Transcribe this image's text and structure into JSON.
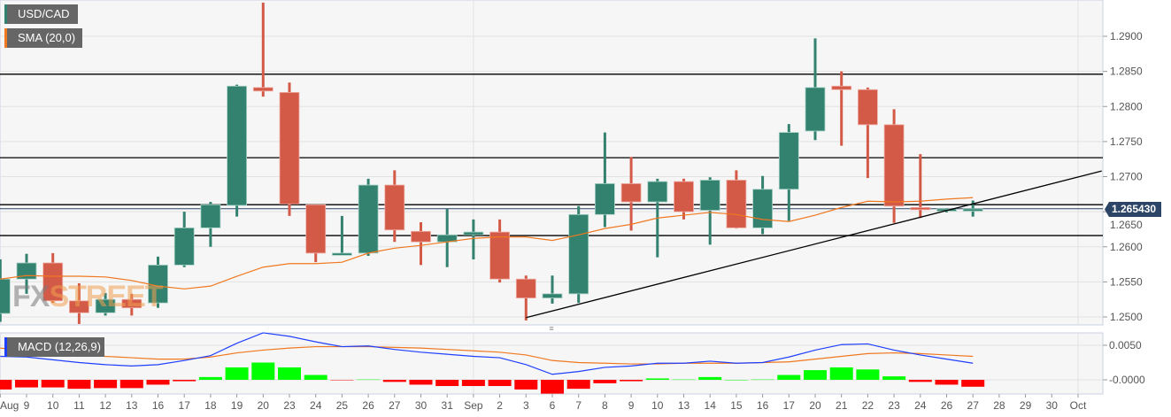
{
  "chart_data": {
    "type": "candlestick",
    "symbol": "USD/CAD",
    "indicators": {
      "sma_label": "SMA (20,0)",
      "macd_label": "MACD (12,26,9)"
    },
    "x_tick_labels": [
      "Aug",
      "9",
      "10",
      "11",
      "12",
      "13",
      "16",
      "17",
      "18",
      "19",
      "20",
      "23",
      "24",
      "25",
      "26",
      "27",
      "30",
      "31",
      "Sep",
      "2",
      "3",
      "6",
      "7",
      "8",
      "9",
      "10",
      "13",
      "14",
      "15",
      "16",
      "17",
      "20",
      "21",
      "22",
      "23",
      "24",
      "26",
      "27",
      "28",
      "29",
      "30",
      "Oct"
    ],
    "candles": [
      [
        1.2505,
        1.2582,
        1.2493,
        1.2554
      ],
      [
        1.2554,
        1.259,
        1.2533,
        1.2577
      ],
      [
        1.2577,
        1.2591,
        1.252,
        1.2523
      ],
      [
        1.2523,
        1.2548,
        1.249,
        1.2506
      ],
      [
        1.2506,
        1.2534,
        1.2502,
        1.2525
      ],
      [
        1.2525,
        1.2533,
        1.2502,
        1.2513
      ],
      [
        1.252,
        1.2586,
        1.2513,
        1.2574
      ],
      [
        1.2574,
        1.265,
        1.2571,
        1.2627
      ],
      [
        1.2627,
        1.2664,
        1.26,
        1.266
      ],
      [
        1.2659,
        1.2831,
        1.2643,
        1.2829
      ],
      [
        1.2827,
        1.2948,
        1.2814,
        1.2822
      ],
      [
        1.282,
        1.2834,
        1.2644,
        1.2661
      ],
      [
        1.266,
        1.266,
        1.2578,
        1.2591
      ],
      [
        1.259,
        1.2644,
        1.2588,
        1.2591
      ],
      [
        1.2591,
        1.2697,
        1.2587,
        1.2688
      ],
      [
        1.2688,
        1.2709,
        1.2607,
        1.2624
      ],
      [
        1.2622,
        1.2635,
        1.2574,
        1.2607
      ],
      [
        1.2607,
        1.2654,
        1.2571,
        1.2617
      ],
      [
        1.2617,
        1.2639,
        1.2582,
        1.2621
      ],
      [
        1.2621,
        1.2639,
        1.2549,
        1.2554
      ],
      [
        1.2554,
        1.2559,
        1.2495,
        1.2527
      ],
      [
        1.2527,
        1.2559,
        1.2519,
        1.2533
      ],
      [
        1.2533,
        1.2658,
        1.252,
        1.2646
      ],
      [
        1.2646,
        1.2763,
        1.2628,
        1.269
      ],
      [
        1.269,
        1.2728,
        1.2623,
        1.2664
      ],
      [
        1.2664,
        1.2697,
        1.2585,
        1.2693
      ],
      [
        1.2693,
        1.2697,
        1.2639,
        1.265
      ],
      [
        1.2652,
        1.2699,
        1.2603,
        1.2695
      ],
      [
        1.2695,
        1.2709,
        1.2626,
        1.2627
      ],
      [
        1.2627,
        1.2701,
        1.2618,
        1.2682
      ],
      [
        1.2682,
        1.2775,
        1.2637,
        1.2763
      ],
      [
        1.2765,
        1.2897,
        1.2752,
        1.2827
      ],
      [
        1.2829,
        1.285,
        1.2744,
        1.2824
      ],
      [
        1.2824,
        1.2827,
        1.2698,
        1.2774
      ],
      [
        1.2774,
        1.2796,
        1.2634,
        1.2658
      ],
      [
        1.2656,
        1.2732,
        1.2641,
        1.2653
      ],
      [
        1.2653,
        1.2655,
        1.2649,
        1.2654
      ],
      [
        1.2653,
        1.2666,
        1.2643,
        1.2654
      ]
    ],
    "candle_format": [
      "open",
      "high",
      "low",
      "close"
    ],
    "sma": [
      1.2554,
      1.2559,
      1.2558,
      1.2558,
      1.2557,
      1.2552,
      1.2544,
      1.254,
      1.2544,
      1.2558,
      1.2571,
      1.2576,
      1.2576,
      1.2578,
      1.2591,
      1.2598,
      1.2602,
      1.2607,
      1.2612,
      1.2614,
      1.2614,
      1.2609,
      1.2617,
      1.2626,
      1.2632,
      1.2641,
      1.2645,
      1.2649,
      1.2646,
      1.2639,
      1.2636,
      1.2645,
      1.2656,
      1.2665,
      1.2664,
      1.2665,
      1.2668,
      1.267
    ],
    "horizontal_levels": [
      1.2846,
      1.2727,
      1.266,
      1.2616
    ],
    "trendline": {
      "from": {
        "x_index": 20,
        "value": 1.2499
      },
      "to": {
        "x_index": 41.9,
        "value": 1.2708
      }
    },
    "current_price": "1.265430",
    "y_ticks": [
      "1.2900",
      "1.2850",
      "1.2800",
      "1.2750",
      "1.2700",
      "1.2650",
      "1.2600",
      "1.2550",
      "1.2500"
    ],
    "ylim": [
      1.2484,
      1.2952
    ],
    "macd": {
      "y_ticks": [
        "0.0050",
        "-0.0000"
      ],
      "histogram": [
        -0.0014,
        -0.0011,
        -0.0011,
        -0.0013,
        -0.0012,
        -0.0012,
        -0.0007,
        -0.0002,
        0.0004,
        0.0018,
        0.0025,
        0.0018,
        0.0007,
        -0.0001,
        0.0001,
        -0.0003,
        -0.0007,
        -0.0009,
        -0.0009,
        -0.0009,
        -0.0014,
        -0.002,
        -0.0013,
        -0.0005,
        -0.0002,
        0.0002,
        0.0001,
        0.0004,
        0.0,
        0.0001,
        0.0007,
        0.0014,
        0.0018,
        0.0015,
        0.0005,
        -0.0003,
        -0.0007,
        -0.001
      ],
      "macd_line": [
        0.0034,
        0.0033,
        0.0029,
        0.0025,
        0.0022,
        0.002,
        0.0022,
        0.0028,
        0.0035,
        0.0053,
        0.0068,
        0.0063,
        0.0055,
        0.0048,
        0.0049,
        0.0044,
        0.004,
        0.0037,
        0.0034,
        0.0032,
        0.0022,
        0.0008,
        0.0012,
        0.0018,
        0.002,
        0.0024,
        0.0024,
        0.0027,
        0.0024,
        0.0025,
        0.0033,
        0.0043,
        0.0051,
        0.0052,
        0.0043,
        0.0036,
        0.003,
        0.0024
      ],
      "signal_line": [
        0.0046,
        0.0042,
        0.0039,
        0.0037,
        0.0034,
        0.0032,
        0.003,
        0.003,
        0.0033,
        0.0039,
        0.0043,
        0.0046,
        0.0048,
        0.0048,
        0.0048,
        0.0047,
        0.0046,
        0.0044,
        0.0042,
        0.004,
        0.0036,
        0.0028,
        0.0025,
        0.0024,
        0.0023,
        0.0023,
        0.0024,
        0.0024,
        0.0024,
        0.0025,
        0.0026,
        0.003,
        0.0034,
        0.0038,
        0.0039,
        0.0038,
        0.0036,
        0.0034
      ]
    },
    "grid": true
  },
  "colors": {
    "up": "#33826f",
    "down": "#d45a48",
    "sma": "#f07820",
    "macd": "#1f3fff",
    "signal": "#f07820",
    "hist_up": "#00ff00",
    "hist_down": "#ff0000",
    "price_badge": "#2c4566"
  },
  "watermark": {
    "part1": "FX",
    "part2": "STREET"
  }
}
